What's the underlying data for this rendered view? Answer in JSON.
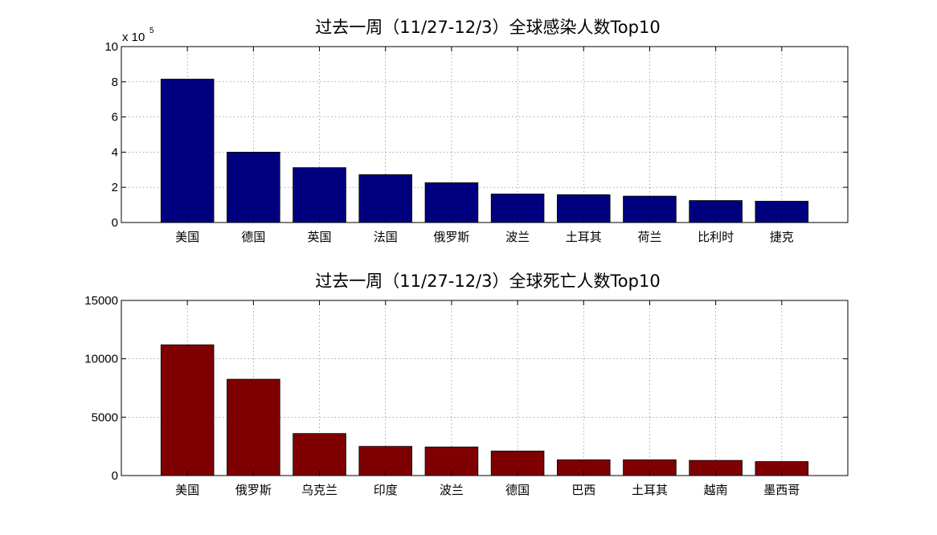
{
  "chart_data": [
    {
      "type": "bar",
      "title": "过去一周（11/27-12/3）全球感染人数Top10",
      "categories": [
        "美国",
        "德国",
        "英国",
        "法国",
        "俄罗斯",
        "波兰",
        "土耳其",
        "荷兰",
        "比利时",
        "捷克"
      ],
      "values": [
        815000,
        400000,
        312000,
        272000,
        226000,
        162000,
        158000,
        150000,
        125000,
        121000
      ],
      "ylim": [
        0,
        1000000
      ],
      "yticks": [
        0,
        2,
        4,
        6,
        8,
        10
      ],
      "y_exponent_label": "x 10",
      "y_exponent_power": "5",
      "scale": 100000,
      "color": "#00007f",
      "grid": true
    },
    {
      "type": "bar",
      "title": "过去一周（11/27-12/3）全球死亡人数Top10",
      "categories": [
        "美国",
        "俄罗斯",
        "乌克兰",
        "印度",
        "波兰",
        "德国",
        "巴西",
        "土耳其",
        "越南",
        "墨西哥"
      ],
      "values": [
        11200,
        8250,
        3600,
        2500,
        2450,
        2100,
        1350,
        1350,
        1300,
        1200
      ],
      "ylim": [
        0,
        15000
      ],
      "yticks": [
        0,
        5000,
        10000,
        15000
      ],
      "scale": 1,
      "color": "#7f0000",
      "grid": true
    }
  ]
}
